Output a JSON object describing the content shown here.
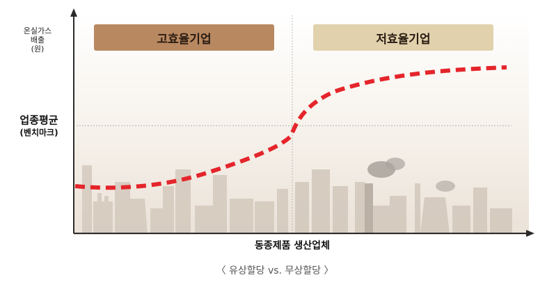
{
  "y_axis": {
    "label_lines": [
      "온실가스",
      "배출",
      "(원)"
    ],
    "benchmark_line1": "업종평균",
    "benchmark_line2": "(벤치마크)"
  },
  "groups": {
    "high_efficiency": "고효율기업",
    "low_efficiency": "저효율기업"
  },
  "x_axis_label": "동종제품 생산업체",
  "caption": "〈 유상할당 vs. 무상할당 〉",
  "colors": {
    "curve": "#e4252b",
    "high_box": "#b88861",
    "low_box": "#e1d2ad",
    "axis": "#2b2b2b",
    "factory_silhouette": "#cfc4b8"
  }
}
